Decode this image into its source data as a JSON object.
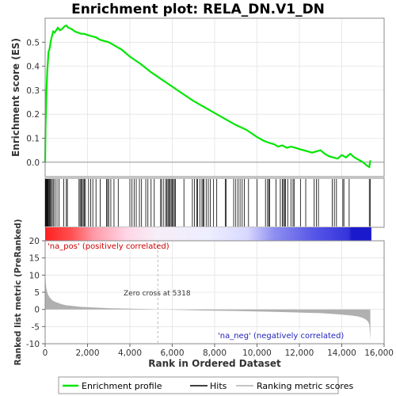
{
  "chart_data": [
    {
      "type": "line",
      "title": "Enrichment plot: RELA_DN.V1_DN",
      "ylabel": "Enrichment score (ES)",
      "xlim": [
        0,
        15500
      ],
      "ylim": [
        -0.06,
        0.6
      ],
      "yticks": [
        0.0,
        0.1,
        0.2,
        0.3,
        0.4,
        0.5
      ],
      "grid": true,
      "series": [
        {
          "name": "Enrichment profile",
          "color": "#00e600",
          "x": [
            0,
            20,
            40,
            60,
            80,
            100,
            130,
            160,
            200,
            240,
            280,
            320,
            380,
            450,
            520,
            600,
            700,
            800,
            900,
            1000,
            1100,
            1250,
            1400,
            1550,
            1700,
            1850,
            2000,
            2200,
            2400,
            2600,
            2800,
            3000,
            3200,
            3400,
            3600,
            3800,
            4000,
            4500,
            5000,
            5500,
            6000,
            6500,
            7000,
            7500,
            8000,
            8500,
            9000,
            9500,
            10000,
            10300,
            10600,
            10800,
            11000,
            11200,
            11400,
            11600,
            11800,
            12000,
            12200,
            12400,
            12600,
            12800,
            13000,
            13200,
            13400,
            13600,
            13800,
            14000,
            14200,
            14400,
            14600,
            14800,
            15000,
            15200,
            15300,
            15350
          ],
          "y": [
            0.0,
            0.15,
            0.22,
            0.29,
            0.33,
            0.38,
            0.42,
            0.46,
            0.47,
            0.49,
            0.51,
            0.525,
            0.545,
            0.54,
            0.55,
            0.56,
            0.55,
            0.555,
            0.565,
            0.57,
            0.56,
            0.555,
            0.545,
            0.54,
            0.535,
            0.535,
            0.53,
            0.525,
            0.52,
            0.51,
            0.505,
            0.5,
            0.49,
            0.48,
            0.47,
            0.455,
            0.44,
            0.41,
            0.375,
            0.345,
            0.315,
            0.285,
            0.255,
            0.23,
            0.205,
            0.18,
            0.155,
            0.135,
            0.105,
            0.09,
            0.08,
            0.075,
            0.065,
            0.07,
            0.06,
            0.065,
            0.06,
            0.055,
            0.05,
            0.045,
            0.04,
            0.045,
            0.05,
            0.035,
            0.025,
            0.02,
            0.015,
            0.03,
            0.02,
            0.035,
            0.02,
            0.01,
            0.0,
            -0.015,
            -0.02,
            0.008
          ]
        }
      ]
    },
    {
      "type": "scatter",
      "name": "hits",
      "legend_label": "Hits",
      "color": "#000000",
      "x": [
        15,
        35,
        55,
        80,
        110,
        140,
        175,
        210,
        250,
        290,
        340,
        400,
        470,
        560,
        650,
        880,
        1000,
        1050,
        1600,
        1650,
        1700,
        1750,
        1800,
        1850,
        1900,
        2050,
        2150,
        2250,
        2400,
        2600,
        2900,
        2950,
        3000,
        3100,
        3250,
        3450,
        4000,
        4100,
        4200,
        4300,
        4450,
        4550,
        4750,
        4850,
        5000,
        5150,
        5450,
        5500,
        5600,
        5700,
        5750,
        5800,
        5850,
        5900,
        5950,
        6000,
        6050,
        6100,
        6150,
        6550,
        6950,
        7050,
        7150,
        7200,
        7300,
        7400,
        7450,
        7500,
        7600,
        7700,
        7800,
        7950,
        8100,
        8500,
        8550,
        8900,
        9000,
        9100,
        9200,
        9300,
        9400,
        9600,
        10000,
        10400,
        10500,
        10550,
        10600,
        10900,
        11100,
        11200,
        11250,
        11300,
        11350,
        11450,
        11600,
        11700,
        11750,
        12050,
        12300,
        12700,
        12800,
        12900,
        13550,
        13650,
        13750,
        14050,
        14100,
        14350,
        15300,
        15350
      ]
    },
    {
      "type": "area",
      "ylabel": "Ranked list metric (PreRanked)",
      "xlabel": "Rank in Ordered Dataset",
      "xlim": [
        0,
        15500
      ],
      "ylim": [
        -10,
        20
      ],
      "yticks": [
        -10,
        -5,
        0,
        5,
        10,
        15,
        20
      ],
      "xticks": [
        0,
        2000,
        4000,
        6000,
        8000,
        10000,
        12000,
        14000,
        16000
      ],
      "xticklabels": [
        "0",
        "2,000",
        "4,000",
        "6,000",
        "8,000",
        "10,000",
        "12,000",
        "14,000",
        "16,000"
      ],
      "grid": true,
      "zero_cross": 5318,
      "series": [
        {
          "name": "Ranking metric scores",
          "color": "#b0b0b0",
          "x": [
            0,
            10,
            30,
            60,
            100,
            150,
            200,
            300,
            400,
            600,
            800,
            1000,
            1300,
            1600,
            2000,
            2500,
            3000,
            4000,
            5000,
            5318,
            6000,
            7000,
            8000,
            9000,
            10000,
            11000,
            12000,
            13000,
            13500,
            14000,
            14500,
            14800,
            15000,
            15150,
            15250,
            15300,
            15350
          ],
          "y": [
            11.5,
            9.5,
            7.5,
            6.0,
            5.0,
            4.2,
            3.6,
            2.9,
            2.4,
            1.9,
            1.5,
            1.2,
            1.0,
            0.8,
            0.65,
            0.5,
            0.35,
            0.2,
            0.08,
            0.0,
            -0.1,
            -0.25,
            -0.35,
            -0.45,
            -0.6,
            -0.75,
            -0.9,
            -1.1,
            -1.3,
            -1.5,
            -1.8,
            -2.1,
            -2.5,
            -3.0,
            -3.6,
            -4.5,
            -9.0
          ]
        }
      ]
    }
  ],
  "labels": {
    "pos_label": "'na_pos' (positively correlated)",
    "neg_label": "'na_neg' (negatively correlated)",
    "zero_cross_label": "Zero cross at 5318"
  },
  "colors": {
    "profile": "#00e600",
    "hits": "#000000",
    "metric": "#b0b0b0",
    "pos": "#ff3333",
    "neg": "#2a2adc",
    "neutral": "#f0f0ff"
  }
}
